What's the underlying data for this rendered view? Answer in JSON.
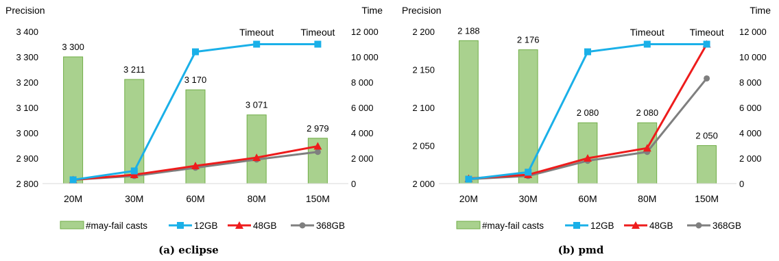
{
  "chart_data": [
    {
      "type": "bar+line",
      "caption": "(a) eclipse",
      "left_axis_label": "Precision",
      "right_axis_label": "Time",
      "categories": [
        "20M",
        "30M",
        "60M",
        "80M",
        "150M"
      ],
      "left_ylim": [
        2800,
        3400
      ],
      "left_ticks": [
        2800,
        2900,
        3000,
        3100,
        3200,
        3300,
        3400
      ],
      "left_tick_labels": [
        "2 800",
        "2 900",
        "3 000",
        "3 100",
        "3 200",
        "3 300",
        "3 400"
      ],
      "right_ylim": [
        0,
        12000
      ],
      "right_ticks": [
        0,
        2000,
        4000,
        6000,
        8000,
        10000,
        12000
      ],
      "right_tick_labels": [
        "0",
        "2 000",
        "4 000",
        "6 000",
        "8 000",
        "10 000",
        "12 000"
      ],
      "bars": {
        "name": "#may-fail casts",
        "values": [
          3300,
          3211,
          3170,
          3071,
          2979
        ],
        "labels": [
          "3 300",
          "3 211",
          "3 170",
          "3 071",
          "2 979"
        ]
      },
      "series": [
        {
          "name": "12GB",
          "color": "#1ab0e8",
          "marker": "square",
          "values": [
            300,
            1000,
            10400,
            11000,
            11000
          ]
        },
        {
          "name": "48GB",
          "color": "#ee1c1c",
          "marker": "triangle",
          "values": [
            300,
            700,
            1400,
            2050,
            2950
          ]
        },
        {
          "name": "368GB",
          "color": "#7f7f7f",
          "marker": "circle",
          "values": [
            300,
            600,
            1250,
            1900,
            2500
          ]
        }
      ],
      "annotations": [
        {
          "text": "Timeout",
          "category": "80M"
        },
        {
          "text": "Timeout",
          "category": "150M"
        }
      ],
      "legend_position": "bottom"
    },
    {
      "type": "bar+line",
      "caption": "(b) pmd",
      "left_axis_label": "Precision",
      "right_axis_label": "Time",
      "categories": [
        "20M",
        "30M",
        "60M",
        "80M",
        "150M"
      ],
      "left_ylim": [
        2000,
        2200
      ],
      "left_ticks": [
        2000,
        2050,
        2100,
        2150,
        2200
      ],
      "left_tick_labels": [
        "2 000",
        "2 050",
        "2 100",
        "2 150",
        "2 200"
      ],
      "right_ylim": [
        0,
        12000
      ],
      "right_ticks": [
        0,
        2000,
        4000,
        6000,
        8000,
        10000,
        12000
      ],
      "right_tick_labels": [
        "0",
        "2 000",
        "4 000",
        "6 000",
        "8 000",
        "10 000",
        "12 000"
      ],
      "bars": {
        "name": "#may-fail casts",
        "values": [
          2188,
          2176,
          2080,
          2080,
          2050
        ],
        "labels": [
          "2 188",
          "2 176",
          "2 080",
          "2 080",
          "2 050"
        ]
      },
      "series": [
        {
          "name": "12GB",
          "color": "#1ab0e8",
          "marker": "square",
          "values": [
            350,
            900,
            10400,
            11000,
            11000
          ]
        },
        {
          "name": "48GB",
          "color": "#ee1c1c",
          "marker": "triangle",
          "values": [
            400,
            700,
            2000,
            2800,
            11000
          ]
        },
        {
          "name": "368GB",
          "color": "#7f7f7f",
          "marker": "circle",
          "values": [
            350,
            600,
            1800,
            2500,
            8300
          ]
        }
      ],
      "annotations": [
        {
          "text": "Timeout",
          "category": "80M"
        },
        {
          "text": "Timeout",
          "category": "150M"
        }
      ],
      "legend_position": "bottom"
    }
  ]
}
